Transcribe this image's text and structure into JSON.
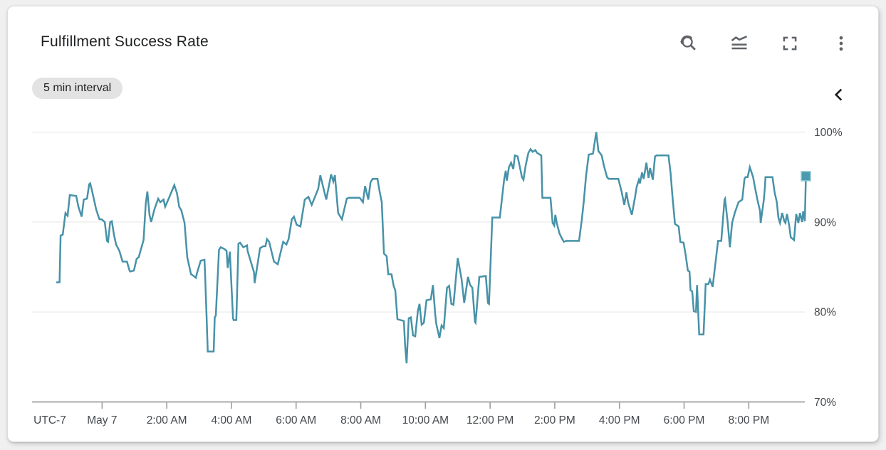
{
  "card": {
    "title": "Fulfillment Success Rate",
    "interval_chip": "5 min interval",
    "toolbar": {
      "zoom_reset": "reset zoom",
      "chart_mode": "chart display mode",
      "fullscreen": "expand chart",
      "more_options": "more options"
    },
    "collapse": "collapse panel"
  },
  "colors": {
    "line": "#4792a8",
    "marker_fill": "#4a9bad",
    "marker_edge": "#8fcbd6",
    "grid": "#ebebeb",
    "axis": "#9e9e9e",
    "tick_label": "#45494d",
    "icon": "#5f6368",
    "chevron": "#1a1a1a",
    "chip_bg": "#e3e3e3",
    "card_bg": "#ffffff",
    "page_bg": "#f0f0f1"
  },
  "chart_data": {
    "type": "line",
    "title": "Fulfillment Success Rate",
    "unit": "%",
    "interval": "5 min",
    "timezone_label": "UTC-7",
    "legend_position": "none",
    "grid": "horizontal",
    "ylim": [
      70,
      100
    ],
    "y_ticks": [
      {
        "label": "100%",
        "v": 100
      },
      {
        "label": "90%",
        "v": 90
      },
      {
        "label": "80%",
        "v": 80
      },
      {
        "label": "70%",
        "v": 70
      }
    ],
    "x_unit": "minutes since May 7 00:00 (UTC-7); negative = May 6",
    "x_range_minutes": [
      -130,
      1304
    ],
    "x_ticks": [
      {
        "label": "May 7",
        "m": 0
      },
      {
        "label": "2:00 AM",
        "m": 120
      },
      {
        "label": "4:00 AM",
        "m": 240
      },
      {
        "label": "6:00 AM",
        "m": 360
      },
      {
        "label": "8:00 AM",
        "m": 480
      },
      {
        "label": "10:00 AM",
        "m": 600
      },
      {
        "label": "12:00 PM",
        "m": 720
      },
      {
        "label": "2:00 PM",
        "m": 840
      },
      {
        "label": "4:00 PM",
        "m": 960
      },
      {
        "label": "6:00 PM",
        "m": 1080
      },
      {
        "label": "8:00 PM",
        "m": 1200
      }
    ],
    "end_marker": {
      "m": 1306,
      "v": 95.1
    },
    "points": [
      [
        -85,
        83.3
      ],
      [
        -79,
        83.3
      ],
      [
        -77,
        88.5
      ],
      [
        -73,
        88.6
      ],
      [
        -68,
        91.0
      ],
      [
        -64,
        90.7
      ],
      [
        -60,
        93.0
      ],
      [
        -48,
        92.9
      ],
      [
        -44,
        91.7
      ],
      [
        -38,
        90.6
      ],
      [
        -34,
        92.5
      ],
      [
        -28,
        92.6
      ],
      [
        -24,
        94.2
      ],
      [
        -22,
        94.3
      ],
      [
        -18,
        93.3
      ],
      [
        -11,
        91.4
      ],
      [
        -5,
        90.3
      ],
      [
        -1,
        90.3
      ],
      [
        5,
        90.0
      ],
      [
        9,
        87.9
      ],
      [
        11,
        87.8
      ],
      [
        15,
        90.0
      ],
      [
        18,
        90.1
      ],
      [
        22,
        88.6
      ],
      [
        26,
        87.5
      ],
      [
        32,
        86.8
      ],
      [
        38,
        85.6
      ],
      [
        46,
        85.6
      ],
      [
        51,
        84.6
      ],
      [
        52,
        84.5
      ],
      [
        59,
        84.6
      ],
      [
        64,
        85.9
      ],
      [
        68,
        86.1
      ],
      [
        77,
        88.0
      ],
      [
        81,
        92.0
      ],
      [
        84,
        93.4
      ],
      [
        88,
        90.8
      ],
      [
        91,
        90.0
      ],
      [
        97,
        91.4
      ],
      [
        104,
        92.6
      ],
      [
        108,
        92.2
      ],
      [
        114,
        92.5
      ],
      [
        117,
        91.7
      ],
      [
        125,
        92.8
      ],
      [
        134,
        94.1
      ],
      [
        139,
        93.2
      ],
      [
        143,
        91.7
      ],
      [
        147,
        91.3
      ],
      [
        153,
        89.9
      ],
      [
        158,
        86.1
      ],
      [
        165,
        84.2
      ],
      [
        170,
        84.0
      ],
      [
        174,
        83.8
      ],
      [
        176,
        84.3
      ],
      [
        183,
        85.7
      ],
      [
        190,
        85.8
      ],
      [
        191,
        84.3
      ],
      [
        194,
        79.4
      ],
      [
        196,
        75.6
      ],
      [
        207,
        75.6
      ],
      [
        209,
        79.4
      ],
      [
        211,
        79.6
      ],
      [
        217,
        86.9
      ],
      [
        220,
        87.2
      ],
      [
        227,
        87.0
      ],
      [
        231,
        86.8
      ],
      [
        233,
        84.9
      ],
      [
        237,
        86.7
      ],
      [
        243,
        79.3
      ],
      [
        244,
        79.1
      ],
      [
        249,
        79.1
      ],
      [
        253,
        87.6
      ],
      [
        256,
        87.7
      ],
      [
        262,
        87.2
      ],
      [
        269,
        87.4
      ],
      [
        270,
        86.8
      ],
      [
        277,
        85.4
      ],
      [
        282,
        84.4
      ],
      [
        283,
        83.2
      ],
      [
        293,
        87.1
      ],
      [
        299,
        87.3
      ],
      [
        303,
        87.3
      ],
      [
        306,
        88.1
      ],
      [
        310,
        87.8
      ],
      [
        319,
        85.6
      ],
      [
        326,
        85.3
      ],
      [
        336,
        87.8
      ],
      [
        342,
        87.5
      ],
      [
        346,
        88.1
      ],
      [
        352,
        90.3
      ],
      [
        356,
        90.6
      ],
      [
        361,
        89.7
      ],
      [
        368,
        89.5
      ],
      [
        376,
        92.5
      ],
      [
        383,
        92.8
      ],
      [
        389,
        91.9
      ],
      [
        401,
        93.7
      ],
      [
        405,
        95.2
      ],
      [
        409,
        94.2
      ],
      [
        416,
        92.5
      ],
      [
        425,
        95.3
      ],
      [
        429,
        94.5
      ],
      [
        432,
        95.2
      ],
      [
        438,
        91.0
      ],
      [
        445,
        90.3
      ],
      [
        454,
        92.6
      ],
      [
        458,
        92.7
      ],
      [
        478,
        92.7
      ],
      [
        484,
        92.2
      ],
      [
        488,
        94.0
      ],
      [
        494,
        92.5
      ],
      [
        498,
        94.4
      ],
      [
        502,
        94.8
      ],
      [
        511,
        94.8
      ],
      [
        515,
        93.4
      ],
      [
        519,
        92.2
      ],
      [
        523,
        86.5
      ],
      [
        528,
        86.2
      ],
      [
        531,
        84.2
      ],
      [
        537,
        84.2
      ],
      [
        541,
        82.9
      ],
      [
        544,
        82.4
      ],
      [
        548,
        79.2
      ],
      [
        560,
        79.0
      ],
      [
        562,
        76.5
      ],
      [
        565,
        74.3
      ],
      [
        569,
        79.3
      ],
      [
        573,
        79.4
      ],
      [
        577,
        77.4
      ],
      [
        581,
        77.3
      ],
      [
        586,
        80.1
      ],
      [
        589,
        80.9
      ],
      [
        593,
        78.6
      ],
      [
        597,
        78.8
      ],
      [
        602,
        81.3
      ],
      [
        610,
        81.4
      ],
      [
        614,
        83.0
      ],
      [
        618,
        79.8
      ],
      [
        620,
        78.7
      ],
      [
        626,
        77.1
      ],
      [
        630,
        78.5
      ],
      [
        634,
        78.2
      ],
      [
        640,
        82.7
      ],
      [
        644,
        82.9
      ],
      [
        648,
        80.9
      ],
      [
        652,
        80.8
      ],
      [
        660,
        86.0
      ],
      [
        667,
        83.7
      ],
      [
        672,
        81.0
      ],
      [
        679,
        83.9
      ],
      [
        683,
        83.0
      ],
      [
        687,
        82.7
      ],
      [
        692,
        78.9
      ],
      [
        693,
        78.8
      ],
      [
        700,
        83.9
      ],
      [
        712,
        84.0
      ],
      [
        716,
        81.0
      ],
      [
        718,
        80.9
      ],
      [
        724,
        90.5
      ],
      [
        738,
        90.5
      ],
      [
        746,
        94.7
      ],
      [
        749,
        95.7
      ],
      [
        751,
        94.6
      ],
      [
        755,
        96.1
      ],
      [
        759,
        96.6
      ],
      [
        763,
        95.9
      ],
      [
        766,
        97.4
      ],
      [
        771,
        97.3
      ],
      [
        775,
        96.2
      ],
      [
        779,
        95.0
      ],
      [
        782,
        94.7
      ],
      [
        786,
        96.3
      ],
      [
        791,
        97.7
      ],
      [
        795,
        98.1
      ],
      [
        799,
        97.8
      ],
      [
        804,
        98.0
      ],
      [
        807,
        97.7
      ],
      [
        815,
        97.4
      ],
      [
        817,
        92.7
      ],
      [
        832,
        92.7
      ],
      [
        836,
        89.9
      ],
      [
        839,
        89.6
      ],
      [
        841,
        90.8
      ],
      [
        844,
        89.8
      ],
      [
        849,
        88.7
      ],
      [
        854,
        88.1
      ],
      [
        857,
        87.8
      ],
      [
        861,
        87.9
      ],
      [
        885,
        87.9
      ],
      [
        890,
        90.2
      ],
      [
        894,
        92.4
      ],
      [
        898,
        95.1
      ],
      [
        903,
        97.5
      ],
      [
        911,
        97.6
      ],
      [
        917,
        100.0
      ],
      [
        921,
        97.9
      ],
      [
        927,
        97.4
      ],
      [
        931,
        96.3
      ],
      [
        937,
        95.0
      ],
      [
        940,
        94.8
      ],
      [
        958,
        94.8
      ],
      [
        964,
        93.4
      ],
      [
        969,
        91.9
      ],
      [
        973,
        93.3
      ],
      [
        976,
        92.2
      ],
      [
        983,
        90.8
      ],
      [
        989,
        92.8
      ],
      [
        992,
        93.9
      ],
      [
        996,
        94.7
      ],
      [
        998,
        94.3
      ],
      [
        1002,
        95.5
      ],
      [
        1005,
        94.8
      ],
      [
        1010,
        96.6
      ],
      [
        1014,
        94.9
      ],
      [
        1017,
        96.0
      ],
      [
        1022,
        94.7
      ],
      [
        1026,
        97.3
      ],
      [
        1029,
        97.4
      ],
      [
        1051,
        97.4
      ],
      [
        1055,
        95.4
      ],
      [
        1058,
        93.1
      ],
      [
        1061,
        91.2
      ],
      [
        1063,
        89.8
      ],
      [
        1070,
        89.5
      ],
      [
        1073,
        87.8
      ],
      [
        1079,
        87.7
      ],
      [
        1083,
        86.3
      ],
      [
        1087,
        84.6
      ],
      [
        1090,
        84.5
      ],
      [
        1092,
        82.4
      ],
      [
        1095,
        82.3
      ],
      [
        1098,
        80.1
      ],
      [
        1102,
        80.0
      ],
      [
        1104,
        83.0
      ],
      [
        1108,
        77.5
      ],
      [
        1116,
        77.5
      ],
      [
        1120,
        83.1
      ],
      [
        1125,
        83.1
      ],
      [
        1128,
        83.6
      ],
      [
        1133,
        82.8
      ],
      [
        1143,
        87.9
      ],
      [
        1149,
        87.9
      ],
      [
        1155,
        92.5
      ],
      [
        1156,
        92.6
      ],
      [
        1161,
        89.9
      ],
      [
        1165,
        87.2
      ],
      [
        1169,
        89.9
      ],
      [
        1174,
        91.0
      ],
      [
        1181,
        92.2
      ],
      [
        1188,
        92.5
      ],
      [
        1192,
        94.8
      ],
      [
        1194,
        95.0
      ],
      [
        1198,
        95.0
      ],
      [
        1202,
        96.1
      ],
      [
        1208,
        95.0
      ],
      [
        1212,
        93.7
      ],
      [
        1216,
        92.5
      ],
      [
        1221,
        91.2
      ],
      [
        1222,
        89.9
      ],
      [
        1228,
        92.5
      ],
      [
        1230,
        93.9
      ],
      [
        1231,
        95.0
      ],
      [
        1244,
        95.0
      ],
      [
        1248,
        93.3
      ],
      [
        1252,
        92.2
      ],
      [
        1255,
        90.5
      ],
      [
        1258,
        89.9
      ],
      [
        1262,
        91.0
      ],
      [
        1266,
        90.1
      ],
      [
        1268,
        89.9
      ],
      [
        1271,
        90.9
      ],
      [
        1275,
        89.6
      ],
      [
        1278,
        88.3
      ],
      [
        1284,
        88.0
      ],
      [
        1288,
        90.9
      ],
      [
        1292,
        89.9
      ],
      [
        1295,
        91.0
      ],
      [
        1299,
        90.0
      ],
      [
        1301,
        91.2
      ],
      [
        1304,
        90.1
      ],
      [
        1306,
        95.1
      ]
    ]
  }
}
